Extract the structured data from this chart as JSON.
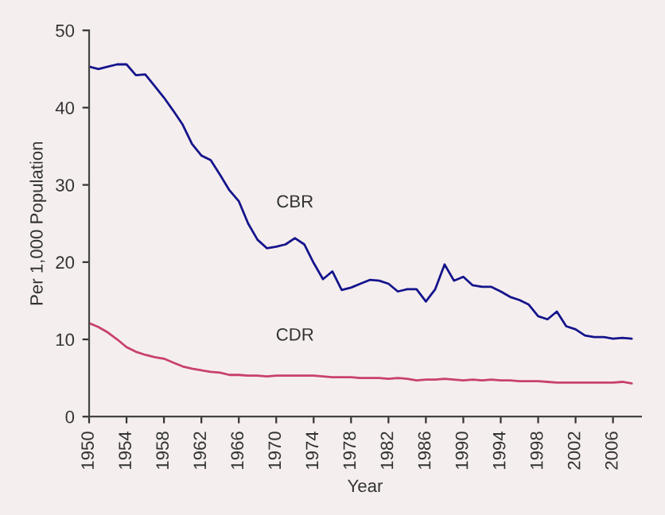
{
  "chart_data": {
    "type": "line",
    "xlabel": "Year",
    "ylabel": "Per 1,000 Population",
    "x": [
      1950,
      1951,
      1952,
      1953,
      1954,
      1955,
      1956,
      1957,
      1958,
      1959,
      1960,
      1961,
      1962,
      1963,
      1964,
      1965,
      1966,
      1967,
      1968,
      1969,
      1970,
      1971,
      1972,
      1973,
      1974,
      1975,
      1976,
      1977,
      1978,
      1979,
      1980,
      1981,
      1982,
      1983,
      1984,
      1985,
      1986,
      1987,
      1988,
      1989,
      1990,
      1991,
      1992,
      1993,
      1994,
      1995,
      1996,
      1997,
      1998,
      1999,
      2000,
      2001,
      2002,
      2003,
      2004,
      2005,
      2006,
      2007,
      2008
    ],
    "series": [
      {
        "name": "CBR",
        "color": "#14148c",
        "values": [
          45.3,
          45.0,
          45.3,
          45.6,
          45.6,
          44.2,
          44.3,
          42.8,
          41.3,
          39.6,
          37.8,
          35.3,
          33.8,
          33.2,
          31.3,
          29.3,
          27.9,
          25.0,
          22.9,
          21.8,
          22.0,
          22.3,
          23.1,
          22.3,
          19.9,
          17.8,
          18.8,
          16.4,
          16.7,
          17.2,
          17.7,
          17.6,
          17.2,
          16.2,
          16.5,
          16.5,
          14.9,
          16.5,
          19.7,
          17.6,
          18.1,
          17.0,
          16.8,
          16.8,
          16.2,
          15.5,
          15.1,
          14.5,
          13.0,
          12.6,
          13.6,
          11.7,
          11.3,
          10.5,
          10.3,
          10.3,
          10.1,
          10.2,
          10.1
        ]
      },
      {
        "name": "CDR",
        "color": "#c8416e",
        "values": [
          12.1,
          11.6,
          10.9,
          10.0,
          9.0,
          8.4,
          8.0,
          7.7,
          7.5,
          7.0,
          6.5,
          6.2,
          6.0,
          5.8,
          5.7,
          5.4,
          5.4,
          5.3,
          5.3,
          5.2,
          5.3,
          5.3,
          5.3,
          5.3,
          5.3,
          5.2,
          5.1,
          5.1,
          5.1,
          5.0,
          5.0,
          5.0,
          4.9,
          5.0,
          4.9,
          4.7,
          4.8,
          4.8,
          4.9,
          4.8,
          4.7,
          4.8,
          4.7,
          4.8,
          4.7,
          4.7,
          4.6,
          4.6,
          4.6,
          4.5,
          4.4,
          4.4,
          4.4,
          4.4,
          4.4,
          4.4,
          4.4,
          4.5,
          4.3
        ]
      }
    ],
    "xlim": [
      1950,
      2009
    ],
    "xticks": [
      1950,
      1954,
      1958,
      1962,
      1966,
      1970,
      1974,
      1978,
      1982,
      1986,
      1990,
      1994,
      1998,
      2002,
      2006
    ],
    "ylim": [
      0,
      50
    ],
    "yticks": [
      0,
      10,
      20,
      30,
      40,
      50
    ],
    "grid": false,
    "legend": false,
    "marker": "none",
    "line_style": "solid"
  }
}
